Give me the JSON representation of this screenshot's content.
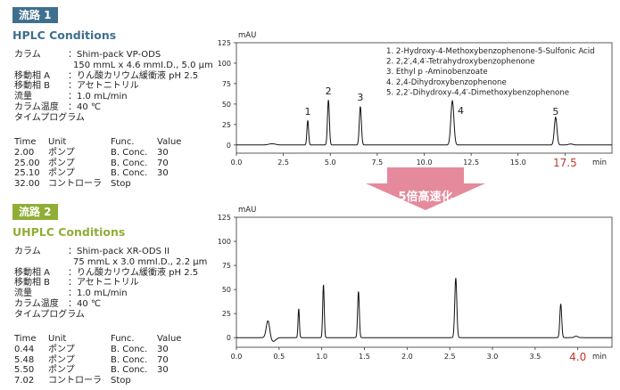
{
  "colors": {
    "hplc": "#3f6f8e",
    "uhplc": "#8fae36",
    "highlight": "#c0392b",
    "arrow": "#e48a9c"
  },
  "hplc": {
    "tag": "流路 1",
    "title": "HPLC Conditions",
    "conditions": [
      {
        "label": "カラム",
        "value": "：Shim-pack VP-ODS"
      },
      {
        "label": "",
        "value": "150 mmL x 4.6 mmI.D., 5.0 μm"
      },
      {
        "label": "移動相 A",
        "value": "：りん酸カリウム緩衝液 pH 2.5"
      },
      {
        "label": "移動相 B",
        "value": "：アセトニトリル"
      },
      {
        "label": "流量",
        "value": "：1.0 mL/min"
      },
      {
        "label": "カラム温度",
        "value": "：40 ℃"
      },
      {
        "label": "タイムプログラム",
        "value": ""
      }
    ],
    "program_header": [
      "Time",
      "Unit",
      "Func.",
      "Value"
    ],
    "program": [
      [
        "2.00",
        "ポンプ",
        "B. Conc.",
        "30"
      ],
      [
        "25.00",
        "ポンプ",
        "B. Conc.",
        "70"
      ],
      [
        "25.10",
        "ポンプ",
        "B. Conc.",
        "30"
      ],
      [
        "32.00",
        "コントローラ",
        "Stop",
        ""
      ]
    ]
  },
  "uhplc": {
    "tag": "流路 2",
    "title": "UHPLC Conditions",
    "conditions": [
      {
        "label": "カラム",
        "value": "：Shim-pack XR-ODS II"
      },
      {
        "label": "",
        "value": "75 mmL x 3.0 mmI.D., 2.2 μm"
      },
      {
        "label": "移動相 A",
        "value": "：りん酸カリウム緩衝液 pH 2.5"
      },
      {
        "label": "移動相 B",
        "value": "：アセトニトリル"
      },
      {
        "label": "流量",
        "value": "：1.0 mL/min"
      },
      {
        "label": "カラム温度",
        "value": "：40 ℃"
      },
      {
        "label": "タイムプログラム",
        "value": ""
      }
    ],
    "program_header": [
      "Time",
      "Unit",
      "Func.",
      "Value"
    ],
    "program": [
      [
        "0.44",
        "ポンプ",
        "B. Conc.",
        "30"
      ],
      [
        "5.48",
        "ポンプ",
        "B. Conc.",
        "70"
      ],
      [
        "5.50",
        "ポンプ",
        "B. Conc.",
        "30"
      ],
      [
        "7.02",
        "コントローラ",
        "Stop",
        ""
      ]
    ]
  },
  "arrow_label": "5倍高速化",
  "chart_data": [
    {
      "type": "line",
      "ylabel": "mAU",
      "xlabel": "min",
      "xlim": [
        0,
        20
      ],
      "ylim": [
        -10,
        125
      ],
      "xticks": [
        0.0,
        2.5,
        5.0,
        7.5,
        10.0,
        12.5,
        15.0,
        17.5
      ],
      "xtick_labels": [
        "0.0",
        "2.5",
        "5.0",
        "7.5",
        "10.0",
        "12.5",
        "15.0",
        ""
      ],
      "yticks": [
        0,
        25,
        50,
        75,
        100,
        125
      ],
      "baseline_end": 20,
      "highlight_value": "17.5",
      "highlight_x": 17.5,
      "peaks": [
        {
          "x": 1.9,
          "h": 1.5,
          "w": 0.18
        },
        {
          "x": 3.8,
          "h": 30,
          "w": 0.045
        },
        {
          "x": 4.9,
          "h": 55,
          "w": 0.05
        },
        {
          "x": 6.6,
          "h": 47,
          "w": 0.055
        },
        {
          "x": 11.5,
          "h": 54,
          "w": 0.08
        },
        {
          "x": 17.0,
          "h": 34,
          "w": 0.07
        },
        {
          "x": 17.8,
          "h": 1.2,
          "w": 0.12
        }
      ],
      "peak_labels": [
        {
          "text": "1",
          "x": 3.8,
          "y": 37
        },
        {
          "text": "2",
          "x": 4.9,
          "y": 62
        },
        {
          "text": "3",
          "x": 6.6,
          "y": 54
        },
        {
          "text": "4",
          "x": 11.95,
          "y": 38
        },
        {
          "text": "5",
          "x": 17.0,
          "y": 37
        }
      ],
      "legend": [
        "1. 2-Hydroxy-4-Methoxybenzophenone-5-Sulfonic Acid",
        "2. 2,2′,4,4′-Tetrahydroxybenzophenone",
        "3. Ethyl p -Aminobenzoate",
        "4. 2,4-Dihydroxybenzophenone",
        "5. 2,2′-Dihydroxy-4,4′-Dimethoxybenzophenone"
      ]
    },
    {
      "type": "line",
      "ylabel": "mAU",
      "xlabel": "min",
      "xlim": [
        0,
        4.4
      ],
      "ylim": [
        -10,
        125
      ],
      "xticks": [
        0.0,
        0.5,
        1.0,
        1.5,
        2.0,
        2.5,
        3.0,
        3.5,
        4.0
      ],
      "xtick_labels": [
        "0.0",
        "0.5",
        "1.0",
        "1.5",
        "2.0",
        "2.5",
        "3.0",
        "3.5",
        ""
      ],
      "yticks": [
        0,
        25,
        50,
        75,
        100,
        125
      ],
      "baseline_end": 4.4,
      "highlight_value": "4.0",
      "highlight_x": 4.0,
      "peaks": [
        {
          "x": 0.37,
          "h": 18,
          "w": 0.02,
          "dip": -4
        },
        {
          "x": 0.73,
          "h": 30,
          "w": 0.008
        },
        {
          "x": 1.02,
          "h": 55,
          "w": 0.009
        },
        {
          "x": 1.43,
          "h": 48,
          "w": 0.01
        },
        {
          "x": 2.57,
          "h": 62,
          "w": 0.012
        },
        {
          "x": 3.8,
          "h": 35,
          "w": 0.011
        },
        {
          "x": 3.98,
          "h": 1.5,
          "w": 0.02
        }
      ],
      "peak_labels": [],
      "legend": []
    }
  ]
}
